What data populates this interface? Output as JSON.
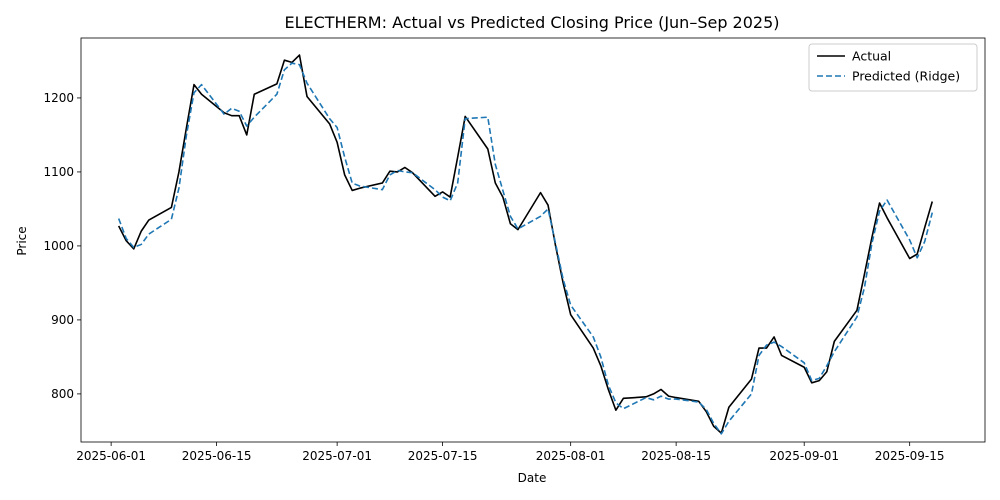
{
  "chart_data": {
    "type": "line",
    "title": "ELECTHERM: Actual vs Predicted Closing Price (Jun–Sep 2025)",
    "xlabel": "Date",
    "ylabel": "Price",
    "xlim": [
      "2025-05-28",
      "2025-09-25"
    ],
    "ylim": [
      735,
      1281
    ],
    "x_ticks": [
      "2025-06-01",
      "2025-06-15",
      "2025-07-01",
      "2025-07-15",
      "2025-08-01",
      "2025-08-15",
      "2025-09-01",
      "2025-09-15"
    ],
    "y_ticks": [
      800,
      900,
      1000,
      1100,
      1200
    ],
    "grid": false,
    "legend_position": "top-right",
    "series": [
      {
        "name": "Actual",
        "color": "#000000",
        "style": "solid",
        "points": [
          [
            "2025-06-02",
            1027
          ],
          [
            "2025-06-03",
            1007
          ],
          [
            "2025-06-04",
            996
          ],
          [
            "2025-06-05",
            1020
          ],
          [
            "2025-06-06",
            1035
          ],
          [
            "2025-06-09",
            1052
          ],
          [
            "2025-06-10",
            1100
          ],
          [
            "2025-06-11",
            1160
          ],
          [
            "2025-06-12",
            1218
          ],
          [
            "2025-06-13",
            1205
          ],
          [
            "2025-06-16",
            1180
          ],
          [
            "2025-06-17",
            1176
          ],
          [
            "2025-06-18",
            1176
          ],
          [
            "2025-06-19",
            1150
          ],
          [
            "2025-06-20",
            1205
          ],
          [
            "2025-06-23",
            1219
          ],
          [
            "2025-06-24",
            1251
          ],
          [
            "2025-06-25",
            1248
          ],
          [
            "2025-06-26",
            1258
          ],
          [
            "2025-06-27",
            1202
          ],
          [
            "2025-06-30",
            1165
          ],
          [
            "2025-07-01",
            1140
          ],
          [
            "2025-07-02",
            1096
          ],
          [
            "2025-07-03",
            1075
          ],
          [
            "2025-07-04",
            1078
          ],
          [
            "2025-07-07",
            1085
          ],
          [
            "2025-07-08",
            1101
          ],
          [
            "2025-07-09",
            1100
          ],
          [
            "2025-07-10",
            1106
          ],
          [
            "2025-07-11",
            1099
          ],
          [
            "2025-07-14",
            1067
          ],
          [
            "2025-07-15",
            1073
          ],
          [
            "2025-07-16",
            1066
          ],
          [
            "2025-07-17",
            1120
          ],
          [
            "2025-07-18",
            1175
          ],
          [
            "2025-07-21",
            1131
          ],
          [
            "2025-07-22",
            1085
          ],
          [
            "2025-07-23",
            1066
          ],
          [
            "2025-07-24",
            1030
          ],
          [
            "2025-07-25",
            1022
          ],
          [
            "2025-07-28",
            1072
          ],
          [
            "2025-07-29",
            1055
          ],
          [
            "2025-07-30",
            1000
          ],
          [
            "2025-07-31",
            950
          ],
          [
            "2025-08-01",
            907
          ],
          [
            "2025-08-04",
            862
          ],
          [
            "2025-08-05",
            838
          ],
          [
            "2025-08-06",
            806
          ],
          [
            "2025-08-07",
            778
          ],
          [
            "2025-08-08",
            794
          ],
          [
            "2025-08-11",
            796
          ],
          [
            "2025-08-12",
            800
          ],
          [
            "2025-08-13",
            806
          ],
          [
            "2025-08-14",
            797
          ],
          [
            "2025-08-15",
            795
          ],
          [
            "2025-08-18",
            790
          ],
          [
            "2025-08-19",
            776
          ],
          [
            "2025-08-20",
            756
          ],
          [
            "2025-08-21",
            747
          ],
          [
            "2025-08-22",
            782
          ],
          [
            "2025-08-25",
            820
          ],
          [
            "2025-08-26",
            862
          ],
          [
            "2025-08-27",
            862
          ],
          [
            "2025-08-28",
            877
          ],
          [
            "2025-08-29",
            852
          ],
          [
            "2025-09-01",
            836
          ],
          [
            "2025-09-02",
            815
          ],
          [
            "2025-09-03",
            818
          ],
          [
            "2025-09-04",
            830
          ],
          [
            "2025-09-05",
            871
          ],
          [
            "2025-09-08",
            913
          ],
          [
            "2025-09-09",
            962
          ],
          [
            "2025-09-10",
            1012
          ],
          [
            "2025-09-11",
            1058
          ],
          [
            "2025-09-12",
            1038
          ],
          [
            "2025-09-15",
            983
          ],
          [
            "2025-09-16",
            989
          ],
          [
            "2025-09-17",
            1025
          ],
          [
            "2025-09-18",
            1060
          ]
        ]
      },
      {
        "name": "Predicted (Ridge)",
        "color": "#1f77b4",
        "style": "dashed",
        "points": [
          [
            "2025-06-02",
            1037
          ],
          [
            "2025-06-03",
            1010
          ],
          [
            "2025-06-04",
            998
          ],
          [
            "2025-06-05",
            1002
          ],
          [
            "2025-06-06",
            1016
          ],
          [
            "2025-06-09",
            1036
          ],
          [
            "2025-06-10",
            1078
          ],
          [
            "2025-06-11",
            1150
          ],
          [
            "2025-06-12",
            1207
          ],
          [
            "2025-06-13",
            1218
          ],
          [
            "2025-06-16",
            1178
          ],
          [
            "2025-06-17",
            1186
          ],
          [
            "2025-06-18",
            1182
          ],
          [
            "2025-06-19",
            1162
          ],
          [
            "2025-06-20",
            1174
          ],
          [
            "2025-06-23",
            1205
          ],
          [
            "2025-06-24",
            1238
          ],
          [
            "2025-06-25",
            1247
          ],
          [
            "2025-06-26",
            1245
          ],
          [
            "2025-06-27",
            1220
          ],
          [
            "2025-06-30",
            1172
          ],
          [
            "2025-07-01",
            1160
          ],
          [
            "2025-07-02",
            1120
          ],
          [
            "2025-07-03",
            1085
          ],
          [
            "2025-07-04",
            1081
          ],
          [
            "2025-07-07",
            1076
          ],
          [
            "2025-07-08",
            1096
          ],
          [
            "2025-07-09",
            1102
          ],
          [
            "2025-07-10",
            1100
          ],
          [
            "2025-07-11",
            1099
          ],
          [
            "2025-07-14",
            1076
          ],
          [
            "2025-07-15",
            1066
          ],
          [
            "2025-07-16",
            1061
          ],
          [
            "2025-07-17",
            1085
          ],
          [
            "2025-07-18",
            1172
          ],
          [
            "2025-07-21",
            1174
          ],
          [
            "2025-07-22",
            1110
          ],
          [
            "2025-07-23",
            1075
          ],
          [
            "2025-07-24",
            1040
          ],
          [
            "2025-07-25",
            1023
          ],
          [
            "2025-07-28",
            1040
          ],
          [
            "2025-07-29",
            1050
          ],
          [
            "2025-07-30",
            1003
          ],
          [
            "2025-07-31",
            955
          ],
          [
            "2025-08-01",
            920
          ],
          [
            "2025-08-04",
            877
          ],
          [
            "2025-08-05",
            850
          ],
          [
            "2025-08-06",
            812
          ],
          [
            "2025-08-07",
            788
          ],
          [
            "2025-08-08",
            780
          ],
          [
            "2025-08-11",
            795
          ],
          [
            "2025-08-12",
            792
          ],
          [
            "2025-08-13",
            797
          ],
          [
            "2025-08-14",
            793
          ],
          [
            "2025-08-15",
            793
          ],
          [
            "2025-08-18",
            789
          ],
          [
            "2025-08-19",
            779
          ],
          [
            "2025-08-20",
            760
          ],
          [
            "2025-08-21",
            746
          ],
          [
            "2025-08-22",
            763
          ],
          [
            "2025-08-25",
            800
          ],
          [
            "2025-08-26",
            852
          ],
          [
            "2025-08-27",
            866
          ],
          [
            "2025-08-28",
            870
          ],
          [
            "2025-08-29",
            864
          ],
          [
            "2025-09-01",
            842
          ],
          [
            "2025-09-02",
            818
          ],
          [
            "2025-09-03",
            821
          ],
          [
            "2025-09-04",
            838
          ],
          [
            "2025-09-05",
            857
          ],
          [
            "2025-09-08",
            904
          ],
          [
            "2025-09-09",
            944
          ],
          [
            "2025-09-10",
            1004
          ],
          [
            "2025-09-11",
            1047
          ],
          [
            "2025-09-12",
            1062
          ],
          [
            "2025-09-15",
            1008
          ],
          [
            "2025-09-16",
            984
          ],
          [
            "2025-09-17",
            1006
          ],
          [
            "2025-09-18",
            1045
          ]
        ]
      }
    ]
  }
}
